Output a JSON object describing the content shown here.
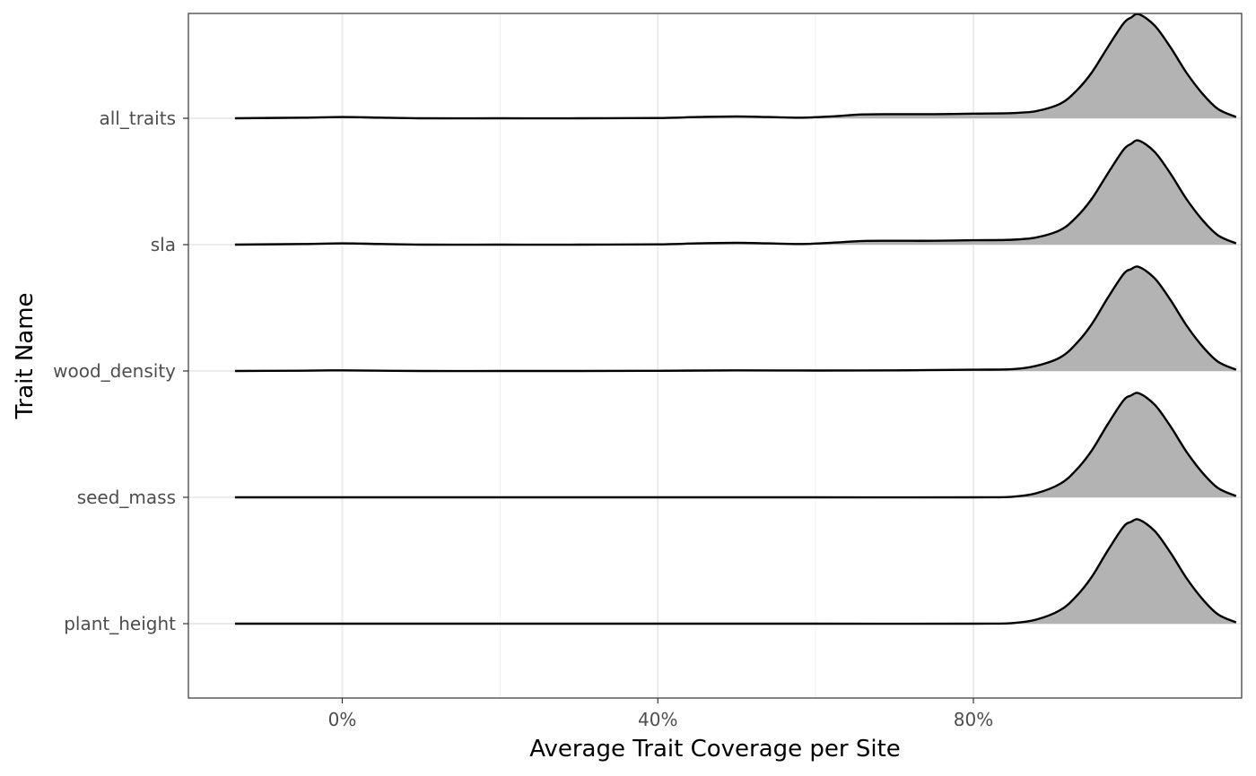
{
  "chart_data": {
    "type": "area",
    "subtype": "ridgeline-density",
    "title": "",
    "xlabel": "Average Trait Coverage per Site",
    "ylabel": "Trait Name",
    "x_ticks": [
      {
        "value": 0,
        "label": "0%"
      },
      {
        "value": 40,
        "label": "40%"
      },
      {
        "value": 80,
        "label": "80%"
      }
    ],
    "xlim": [
      -19.5,
      114
    ],
    "categories": [
      "all_traits",
      "sla",
      "wood_density",
      "seed_mass",
      "plant_height"
    ],
    "grid": true,
    "legend": "none",
    "fill_color": "#b3b3b3",
    "line_color": "#000000",
    "series": [
      {
        "name": "all_traits",
        "x": [
          -13.6,
          -5,
          0,
          5,
          10,
          20,
          30,
          40,
          45,
          50,
          54,
          58,
          62,
          66,
          70,
          75,
          80,
          85,
          88,
          91,
          93,
          95,
          97,
          99,
          100,
          101,
          103,
          105,
          107,
          109,
          111,
          113.3
        ],
        "density": [
          0,
          0.006,
          0.012,
          0.006,
          0,
          0,
          0,
          0.003,
          0.012,
          0.018,
          0.012,
          0.006,
          0.018,
          0.037,
          0.04,
          0.04,
          0.045,
          0.05,
          0.07,
          0.14,
          0.26,
          0.44,
          0.68,
          0.91,
          0.97,
          1.0,
          0.89,
          0.68,
          0.44,
          0.24,
          0.09,
          0.012
        ]
      },
      {
        "name": "sla",
        "x": [
          -13.6,
          -5,
          0,
          5,
          10,
          20,
          30,
          40,
          45,
          50,
          54,
          58,
          62,
          66,
          70,
          75,
          80,
          85,
          88,
          91,
          93,
          95,
          97,
          99,
          100,
          101,
          103,
          105,
          107,
          109,
          111,
          113.3
        ],
        "density": [
          0,
          0.006,
          0.012,
          0.006,
          0,
          0,
          0,
          0.003,
          0.012,
          0.018,
          0.012,
          0.006,
          0.018,
          0.035,
          0.037,
          0.037,
          0.042,
          0.047,
          0.07,
          0.14,
          0.26,
          0.44,
          0.68,
          0.91,
          0.97,
          1.0,
          0.89,
          0.68,
          0.44,
          0.24,
          0.09,
          0.012
        ]
      },
      {
        "name": "wood_density",
        "x": [
          -13.6,
          -5,
          0,
          5,
          10,
          20,
          30,
          40,
          50,
          60,
          70,
          80,
          85,
          88,
          91,
          93,
          95,
          97,
          99,
          100,
          101,
          103,
          105,
          107,
          109,
          111,
          113.3
        ],
        "density": [
          0,
          0.003,
          0.006,
          0.003,
          0,
          0,
          0,
          0.002,
          0.006,
          0.004,
          0.006,
          0.012,
          0.018,
          0.05,
          0.13,
          0.26,
          0.45,
          0.7,
          0.93,
          0.98,
          1.0,
          0.89,
          0.68,
          0.44,
          0.24,
          0.09,
          0.012
        ]
      },
      {
        "name": "seed_mass",
        "x": [
          -13.6,
          0,
          20,
          40,
          60,
          80,
          85,
          88,
          91,
          93,
          95,
          97,
          99,
          100,
          101,
          103,
          105,
          107,
          109,
          111,
          113.3
        ],
        "density": [
          0,
          0,
          0,
          0,
          0,
          0,
          0.006,
          0.04,
          0.13,
          0.26,
          0.45,
          0.7,
          0.93,
          0.98,
          1.0,
          0.89,
          0.68,
          0.44,
          0.24,
          0.09,
          0.012
        ]
      },
      {
        "name": "plant_height",
        "x": [
          -13.6,
          0,
          20,
          40,
          60,
          80,
          85,
          88,
          91,
          93,
          95,
          97,
          99,
          100,
          101,
          103,
          105,
          107,
          109,
          111,
          113.3
        ],
        "density": [
          0,
          0,
          0,
          0,
          0,
          0,
          0.006,
          0.04,
          0.13,
          0.26,
          0.45,
          0.7,
          0.93,
          0.98,
          1.0,
          0.89,
          0.68,
          0.44,
          0.24,
          0.09,
          0.012
        ]
      }
    ]
  }
}
